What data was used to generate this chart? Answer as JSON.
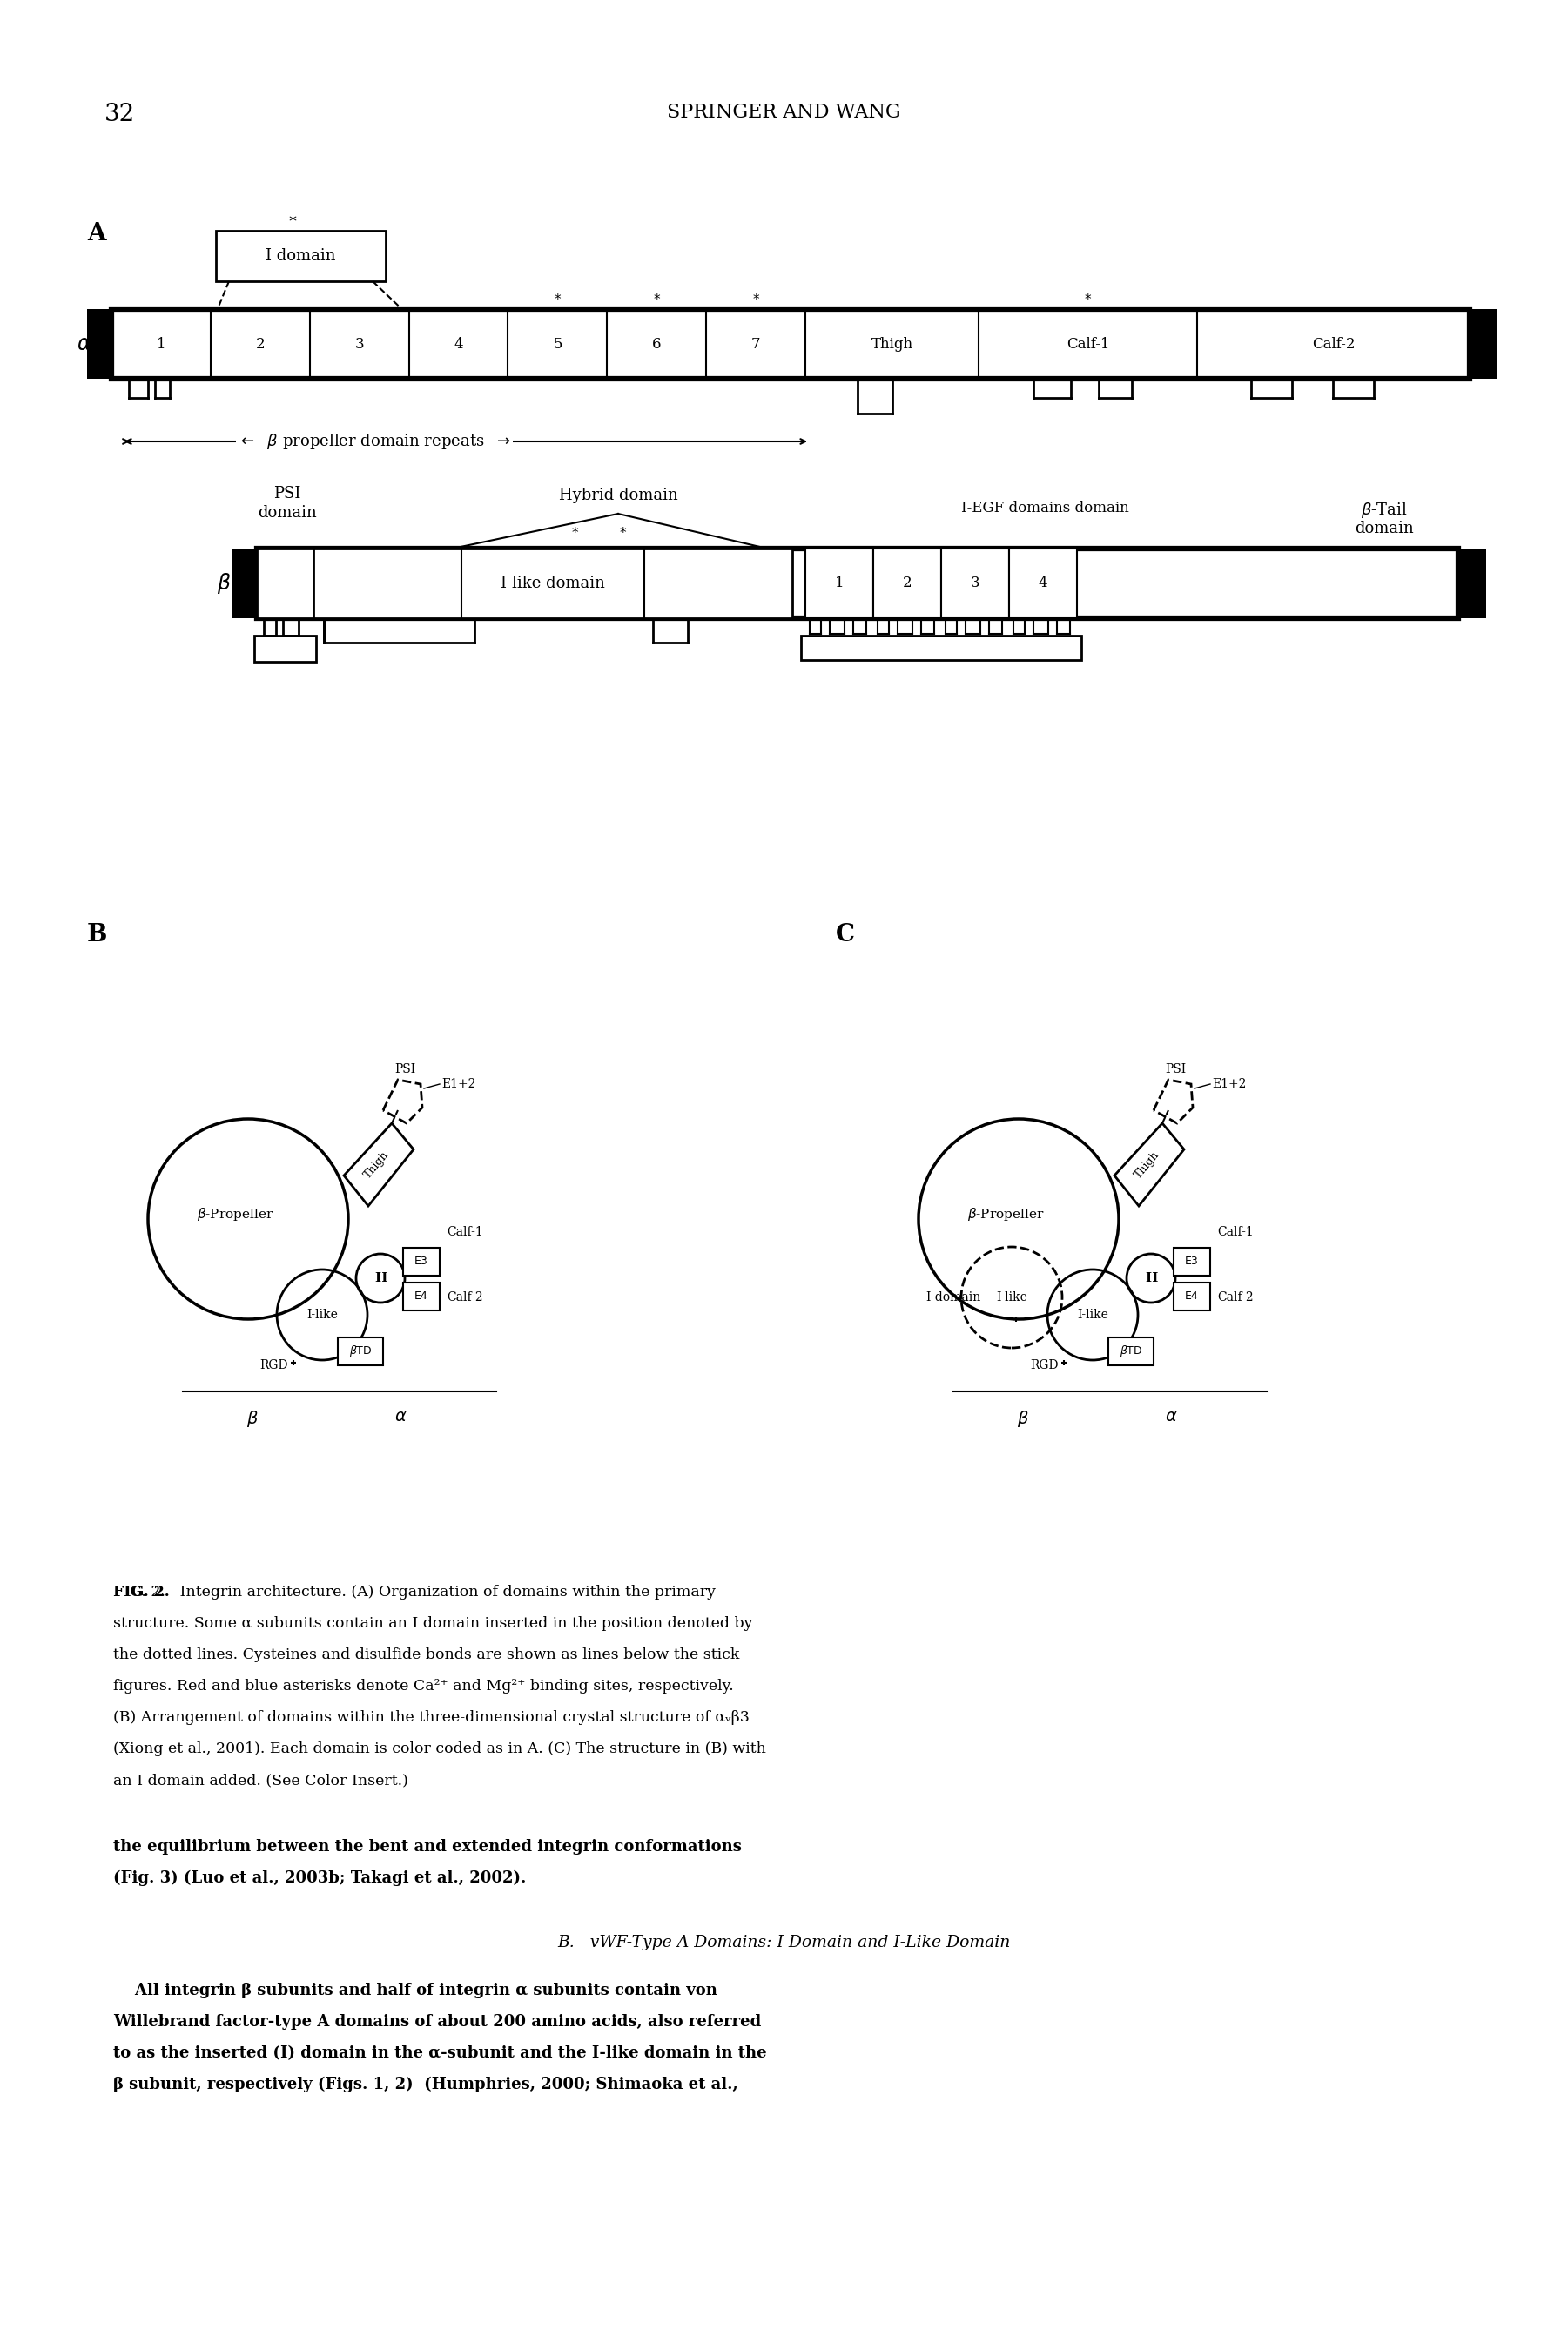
{
  "page_number": "32",
  "header": "SPRINGER AND WANG",
  "alpha_domains": [
    "1",
    "2",
    "3",
    "4",
    "5",
    "6",
    "7",
    "Thigh",
    "Calf-1",
    "Calf-2"
  ],
  "beta_domains": [
    "I-like domain",
    "1",
    "2",
    "3",
    "4"
  ],
  "background_color": "#ffffff",
  "text_color": "#000000",
  "caption_bold_start": "FIG. 2.",
  "caption_text": "Integrin architecture. (A) Organization of domains within the primary structure. Some a subunits contain an I domain inserted in the position denoted by the dotted lines. Cysteines and disulfide bonds are shown as lines below the stick figures. Red and blue asterisks denote Ca2+ and Mg2+ binding sites, respectively. (B) Arrangement of domains within the three-dimensional crystal structure of av-b3 (Xiong et al., 2001). Each domain is color coded as in A. (C) The structure in (B) with an I domain added. (See Color Insert.)",
  "body_line1": "the equilibrium between the bent and extended integrin conformations",
  "body_line2": "(Fig. 3) (Luo et al., 2003b; Takagi et al., 2002).",
  "section_heading": "B.   vWF-Type A Domains: I Domain and I-Like Domain",
  "para_lines": [
    "    All integrin β subunits and half of integrin α subunits contain von",
    "Willebrand factor-type A domains of about 200 amino acids, also referred",
    "to as the inserted (I) domain in the α-subunit and the I-like domain in the",
    "β subunit, respectively (Figs. 1, 2)  (Humphries, 2000; Shimaoka et al.,"
  ]
}
